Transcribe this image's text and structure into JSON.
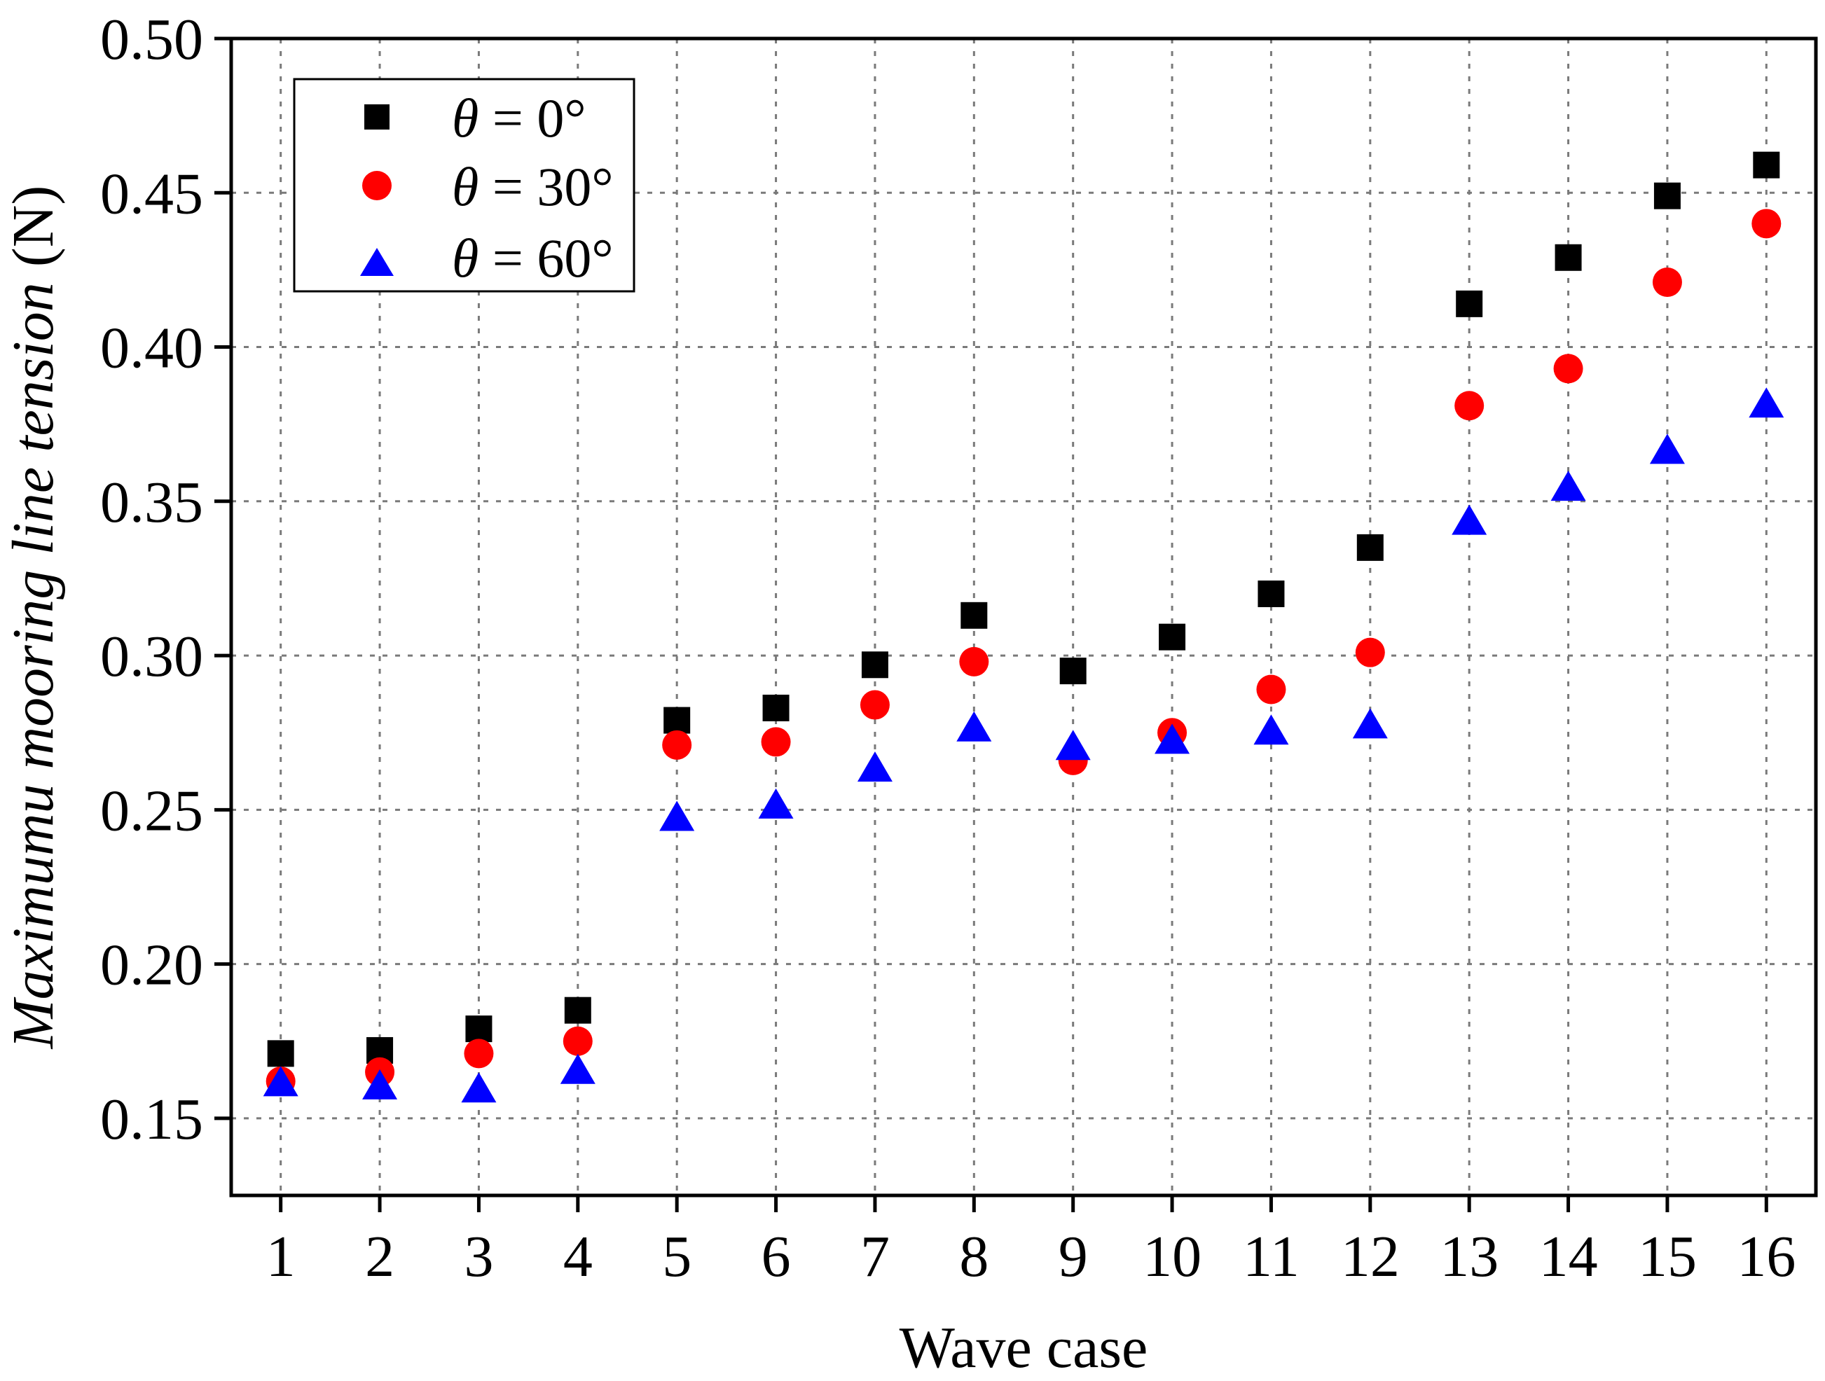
{
  "chart_data": {
    "type": "scatter",
    "title": "",
    "xlabel": "Wave case",
    "ylabel": "Maximumu mooring line tension",
    "ylabel_unit": "(N)",
    "categories": [
      "1",
      "2",
      "3",
      "4",
      "5",
      "6",
      "7",
      "8",
      "9",
      "10",
      "11",
      "12",
      "13",
      "14",
      "15",
      "16"
    ],
    "x": [
      1,
      2,
      3,
      4,
      5,
      6,
      7,
      8,
      9,
      10,
      11,
      12,
      13,
      14,
      15,
      16
    ],
    "xlim": [
      0.5,
      16.5
    ],
    "ylim": [
      0.125,
      0.5
    ],
    "yticks": [
      "0.15",
      "0.20",
      "0.25",
      "0.30",
      "0.35",
      "0.40",
      "0.45",
      "0.50"
    ],
    "ytick_values": [
      0.15,
      0.2,
      0.25,
      0.3,
      0.35,
      0.4,
      0.45,
      0.5
    ],
    "grid": true,
    "legend_position": "top-left",
    "series": [
      {
        "name": "θ = 0°",
        "legend_symbol": "θ",
        "legend_label": " = 0°",
        "marker": "square",
        "color": "#000000",
        "values": [
          0.171,
          0.172,
          0.179,
          0.185,
          0.279,
          0.283,
          0.297,
          0.313,
          0.295,
          0.306,
          0.32,
          0.335,
          0.414,
          0.429,
          0.449,
          0.459
        ]
      },
      {
        "name": "θ = 30°",
        "legend_symbol": "θ",
        "legend_label": " = 30°",
        "marker": "circle",
        "color": "#ff0000",
        "values": [
          0.162,
          0.165,
          0.171,
          0.175,
          0.271,
          0.272,
          0.284,
          0.298,
          0.266,
          0.275,
          0.289,
          0.301,
          0.381,
          0.393,
          0.421,
          0.44
        ]
      },
      {
        "name": "θ = 60°",
        "legend_symbol": "θ",
        "legend_label": " = 60°",
        "marker": "triangle",
        "color": "#0000ff",
        "values": [
          0.161,
          0.16,
          0.159,
          0.165,
          0.247,
          0.251,
          0.263,
          0.276,
          0.27,
          0.272,
          0.275,
          0.277,
          0.343,
          0.354,
          0.366,
          0.381
        ]
      }
    ]
  }
}
